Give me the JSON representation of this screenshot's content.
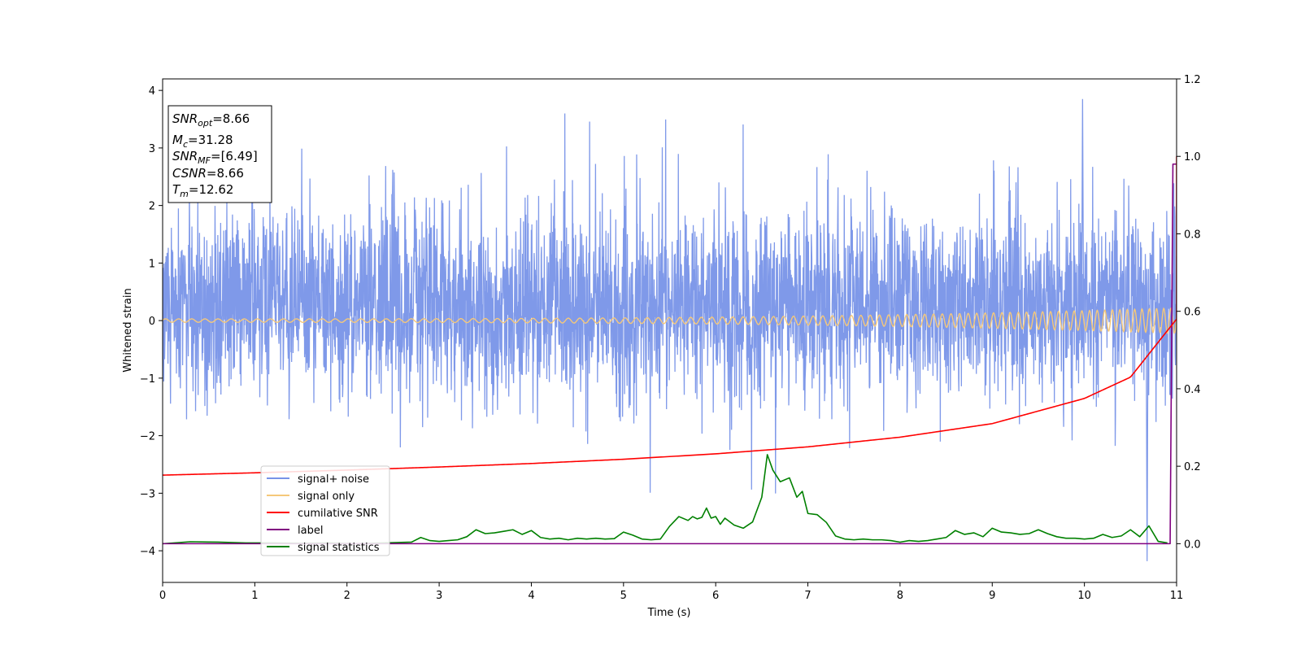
{
  "chart_data": {
    "type": "line",
    "xlabel": "Time (s)",
    "ylabel": "Whitened strain",
    "xlim": [
      0,
      11
    ],
    "ylim": [
      -4.55,
      4.2
    ],
    "y2lim": [
      -0.1,
      1.2
    ],
    "x_ticks": [
      0,
      1,
      2,
      3,
      4,
      5,
      6,
      7,
      8,
      9,
      10,
      11
    ],
    "y_ticks": [
      4,
      3,
      2,
      1,
      0,
      -1,
      -2,
      -3,
      -4
    ],
    "y_tick_labels": [
      "4",
      "3",
      "2",
      "1",
      "0",
      "−1",
      "−2",
      "−3",
      "−4"
    ],
    "y2_ticks": [
      1.2,
      1.0,
      0.8,
      0.6,
      0.4,
      0.2,
      0.0
    ],
    "y2_tick_labels": [
      "1.2",
      "1.0",
      "0.8",
      "0.6",
      "0.4",
      "0.2",
      "0.0"
    ],
    "grid": false,
    "legend_position": "lower-left",
    "stats_box": [
      {
        "base": "SNR",
        "sub": "opt",
        "value": "=8.66"
      },
      {
        "base": "M",
        "sub": "c",
        "value": "=31.28"
      },
      {
        "base": "SNR",
        "sub": "MF",
        "value": "=[6.49]"
      },
      {
        "base": "CSNR",
        "sub": "",
        "value": "=8.66"
      },
      {
        "base": "T",
        "sub": "m",
        "value": "=12.62"
      }
    ],
    "series": [
      {
        "name": "signal+ noise",
        "color": "#7893e8",
        "axis": "left",
        "description_values": {
          "envelope_upper": 2.6,
          "envelope_lower": -2.0,
          "max_peak": [
            9.98,
            3.85
          ],
          "min_peak": [
            10.68,
            -4.18
          ]
        }
      },
      {
        "name": "signal only",
        "color": "#f5c87a",
        "axis": "left",
        "chirp_amplitude_start": 0.03,
        "chirp_amplitude_end": 0.22,
        "chirp_cycles_per_second_start": 7,
        "chirp_cycles_per_second_end": 13
      },
      {
        "name": "cumilative SNR",
        "color": "#ff0000",
        "axis": "right",
        "x": [
          0,
          1,
          2,
          3,
          4,
          5,
          6,
          7,
          8,
          9,
          10,
          10.5,
          11
        ],
        "values": [
          0.177,
          0.183,
          0.19,
          0.198,
          0.207,
          0.218,
          0.232,
          0.25,
          0.275,
          0.31,
          0.375,
          0.43,
          0.58
        ]
      },
      {
        "name": "label",
        "color": "#800080",
        "axis": "right",
        "x": [
          0,
          10.93,
          10.96,
          11
        ],
        "values": [
          0,
          0,
          0.98,
          0.98
        ]
      },
      {
        "name": "signal statistics",
        "color": "#008000",
        "axis": "right",
        "x": [
          0,
          0.3,
          0.6,
          0.9,
          1.2,
          1.5,
          1.8,
          2.1,
          2.4,
          2.7,
          2.8,
          2.9,
          3.0,
          3.1,
          3.2,
          3.3,
          3.4,
          3.5,
          3.6,
          3.7,
          3.8,
          3.9,
          4.0,
          4.1,
          4.2,
          4.3,
          4.4,
          4.5,
          4.6,
          4.7,
          4.8,
          4.9,
          5.0,
          5.1,
          5.2,
          5.3,
          5.4,
          5.5,
          5.6,
          5.7,
          5.75,
          5.8,
          5.85,
          5.9,
          5.95,
          6.0,
          6.05,
          6.1,
          6.2,
          6.3,
          6.4,
          6.5,
          6.56,
          6.62,
          6.7,
          6.8,
          6.88,
          6.94,
          7.0,
          7.1,
          7.2,
          7.3,
          7.4,
          7.5,
          7.6,
          7.7,
          7.8,
          7.9,
          8.0,
          8.1,
          8.2,
          8.3,
          8.4,
          8.5,
          8.6,
          8.7,
          8.8,
          8.9,
          9.0,
          9.1,
          9.2,
          9.3,
          9.4,
          9.5,
          9.6,
          9.7,
          9.8,
          9.9,
          10.0,
          10.1,
          10.2,
          10.3,
          10.4,
          10.5,
          10.6,
          10.7,
          10.8,
          10.9
        ],
        "values": [
          0.0,
          0.005,
          0.004,
          0.002,
          0.002,
          0.001,
          0.002,
          0.0,
          0.002,
          0.004,
          0.016,
          0.008,
          0.006,
          0.008,
          0.01,
          0.018,
          0.036,
          0.026,
          0.028,
          0.032,
          0.036,
          0.024,
          0.034,
          0.016,
          0.012,
          0.014,
          0.01,
          0.014,
          0.012,
          0.014,
          0.012,
          0.013,
          0.03,
          0.022,
          0.012,
          0.01,
          0.012,
          0.045,
          0.07,
          0.06,
          0.07,
          0.064,
          0.068,
          0.092,
          0.066,
          0.07,
          0.05,
          0.066,
          0.048,
          0.04,
          0.056,
          0.12,
          0.23,
          0.19,
          0.16,
          0.17,
          0.12,
          0.135,
          0.078,
          0.075,
          0.055,
          0.02,
          0.012,
          0.01,
          0.012,
          0.01,
          0.01,
          0.008,
          0.004,
          0.008,
          0.006,
          0.008,
          0.012,
          0.016,
          0.034,
          0.024,
          0.028,
          0.018,
          0.04,
          0.03,
          0.028,
          0.024,
          0.026,
          0.036,
          0.026,
          0.018,
          0.014,
          0.014,
          0.012,
          0.014,
          0.024,
          0.016,
          0.02,
          0.036,
          0.018,
          0.046,
          0.006,
          0.002
        ]
      }
    ]
  }
}
